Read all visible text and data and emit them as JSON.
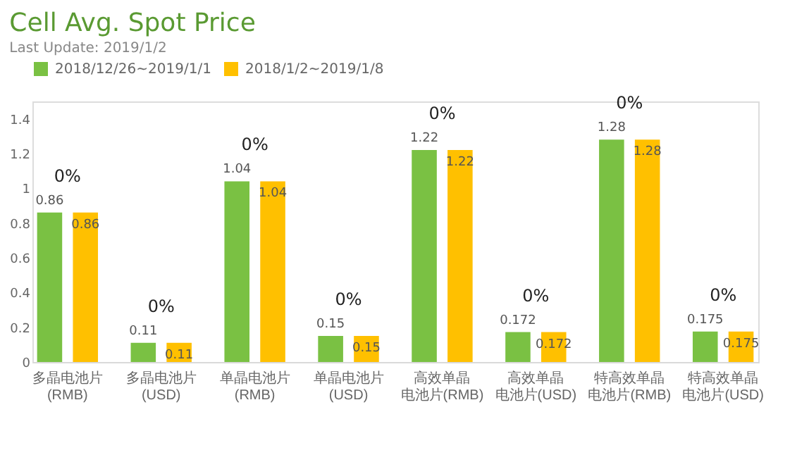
{
  "chart_data": {
    "type": "bar",
    "title": "Cell Avg. Spot Price",
    "subtitle": "Last Update: 2019/1/2",
    "categories": [
      "多晶电池片(RMB)",
      "多晶电池片(USD)",
      "单晶电池片(RMB)",
      "单晶电池片(USD)",
      "高效单晶电池片(RMB)",
      "高效单晶电池片(USD)",
      "特高效单晶电池片(RMB)",
      "特高效单晶电池片(USD)"
    ],
    "series": [
      {
        "name": "2018/12/26~2019/1/1",
        "color": "#7ac143",
        "values": [
          0.86,
          0.11,
          1.04,
          0.15,
          1.22,
          0.172,
          1.28,
          0.175
        ]
      },
      {
        "name": "2018/1/2~2019/1/8",
        "color": "#ffc000",
        "values": [
          0.86,
          0.11,
          1.04,
          0.15,
          1.22,
          0.172,
          1.28,
          0.175
        ]
      }
    ],
    "annotations": [
      "0%",
      "0%",
      "0%",
      "0%",
      "0%",
      "0%",
      "0%",
      "0%"
    ],
    "ylim": [
      0,
      1.5
    ],
    "yticks": [
      0,
      0.2,
      0.4,
      0.6,
      0.8,
      1,
      1.2,
      1.4
    ],
    "data_labels": true,
    "grid": false,
    "legend": "top"
  }
}
